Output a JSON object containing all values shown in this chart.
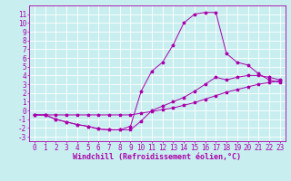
{
  "xlabel": "Windchill (Refroidissement éolien,°C)",
  "background_color": "#c8eef0",
  "line_color": "#aa00aa",
  "grid_color": "#ffffff",
  "xlim": [
    -0.5,
    23.5
  ],
  "ylim": [
    -3.5,
    12.0
  ],
  "xticks": [
    0,
    1,
    2,
    3,
    4,
    5,
    6,
    7,
    8,
    9,
    10,
    11,
    12,
    13,
    14,
    15,
    16,
    17,
    18,
    19,
    20,
    21,
    22,
    23
  ],
  "yticks": [
    -3,
    -2,
    -1,
    0,
    1,
    2,
    3,
    4,
    5,
    6,
    7,
    8,
    9,
    10,
    11
  ],
  "curve1_x": [
    0,
    1,
    2,
    3,
    4,
    5,
    6,
    7,
    8,
    9,
    10,
    11,
    12,
    13,
    14,
    15,
    16,
    17,
    18,
    19,
    20,
    21,
    22,
    23
  ],
  "curve1_y": [
    -0.5,
    -0.5,
    -0.5,
    -0.5,
    -0.5,
    -0.5,
    -0.5,
    -0.5,
    -0.5,
    -0.5,
    -0.3,
    -0.1,
    0.1,
    0.3,
    0.6,
    0.9,
    1.3,
    1.7,
    2.1,
    2.4,
    2.7,
    3.0,
    3.2,
    3.4
  ],
  "curve2_x": [
    0,
    1,
    2,
    3,
    4,
    5,
    6,
    7,
    8,
    9,
    10,
    11,
    12,
    13,
    14,
    15,
    16,
    17,
    18,
    19,
    20,
    21,
    22,
    23
  ],
  "curve2_y": [
    -0.5,
    -0.5,
    -1.0,
    -1.3,
    -1.6,
    -1.8,
    -2.1,
    -2.2,
    -2.2,
    -2.2,
    -1.2,
    0.0,
    0.5,
    1.0,
    1.5,
    2.2,
    3.0,
    3.8,
    3.5,
    3.8,
    4.0,
    4.0,
    3.8,
    3.5
  ],
  "curve3_x": [
    0,
    1,
    2,
    3,
    4,
    5,
    6,
    7,
    8,
    9,
    10,
    11,
    12,
    13,
    14,
    15,
    16,
    17,
    18,
    19,
    20,
    21,
    22,
    23
  ],
  "curve3_y": [
    -0.5,
    -0.5,
    -1.0,
    -1.3,
    -1.6,
    -1.8,
    -2.1,
    -2.2,
    -2.2,
    -1.8,
    2.2,
    4.5,
    5.5,
    7.5,
    10.0,
    11.0,
    11.2,
    11.2,
    6.5,
    5.5,
    5.2,
    4.2,
    3.5,
    3.2
  ],
  "font_size": 5.5,
  "tick_font_size": 5.5,
  "xlabel_font_size": 6.0
}
